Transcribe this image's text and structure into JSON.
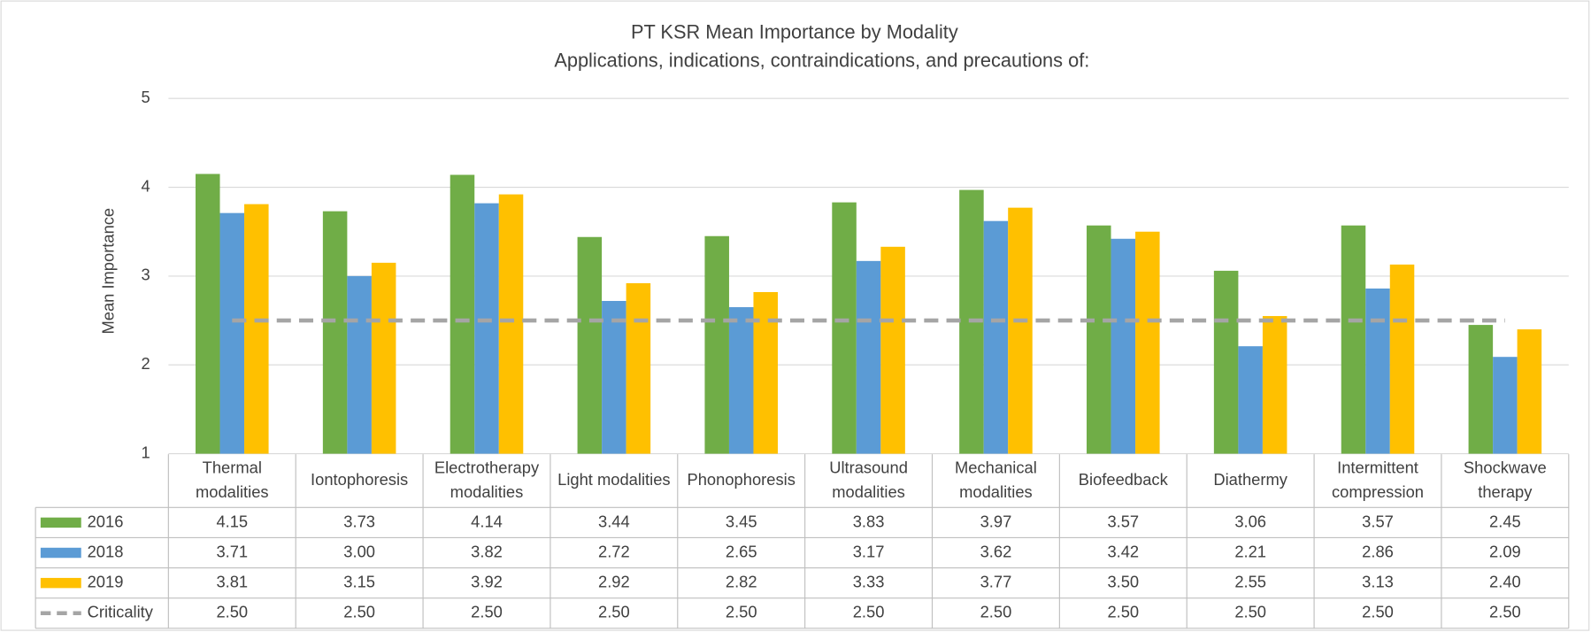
{
  "chart_data": {
    "type": "bar",
    "title": "PT KSR Mean Importance by Modality",
    "subtitle": "Applications, indications, contraindications, and precautions of:",
    "y_label": "Mean Importance",
    "categories": [
      "Thermal modalities",
      "Iontophoresis",
      "Electrotherapy modalities",
      "Light modalities",
      "Phonophoresis",
      "Ultrasound modalities",
      "Mechanical modalities",
      "Biofeedback",
      "Diathermy",
      "Intermittent compression",
      "Shockwave therapy"
    ],
    "ylim": [
      1,
      5
    ],
    "yticks": [
      1,
      2,
      3,
      4,
      5
    ],
    "grid": true,
    "series": [
      {
        "name": "2016",
        "color": "#70ad47",
        "type": "bar",
        "values": [
          4.15,
          3.73,
          4.14,
          3.44,
          3.45,
          3.83,
          3.97,
          3.57,
          3.06,
          3.57,
          2.45
        ],
        "value_labels": [
          "4.15",
          "3.73",
          "4.14",
          "3.44",
          "3.45",
          "3.83",
          "3.97",
          "3.57",
          "3.06",
          "3.57",
          "2.45"
        ]
      },
      {
        "name": "2018",
        "color": "#5b9bd5",
        "type": "bar",
        "values": [
          3.71,
          3.0,
          3.82,
          2.72,
          2.65,
          3.17,
          3.62,
          3.42,
          2.21,
          2.86,
          2.09
        ],
        "value_labels": [
          "3.71",
          "3.00",
          "3.82",
          "2.72",
          "2.65",
          "3.17",
          "3.62",
          "3.42",
          "2.21",
          "2.86",
          "2.09"
        ]
      },
      {
        "name": "2019",
        "color": "#ffc000",
        "type": "bar",
        "values": [
          3.81,
          3.15,
          3.92,
          2.92,
          2.82,
          3.33,
          3.77,
          3.5,
          2.55,
          3.13,
          2.4
        ],
        "value_labels": [
          "3.81",
          "3.15",
          "3.92",
          "2.92",
          "2.82",
          "3.33",
          "3.77",
          "3.50",
          "2.55",
          "3.13",
          "2.40"
        ]
      },
      {
        "name": "Criticality",
        "color": "#a5a5a5",
        "type": "line",
        "dashed": true,
        "values": [
          2.5,
          2.5,
          2.5,
          2.5,
          2.5,
          2.5,
          2.5,
          2.5,
          2.5,
          2.5,
          2.5
        ],
        "value_labels": [
          "2.50",
          "2.50",
          "2.50",
          "2.50",
          "2.50",
          "2.50",
          "2.50",
          "2.50",
          "2.50",
          "2.50",
          "2.50"
        ]
      }
    ]
  }
}
